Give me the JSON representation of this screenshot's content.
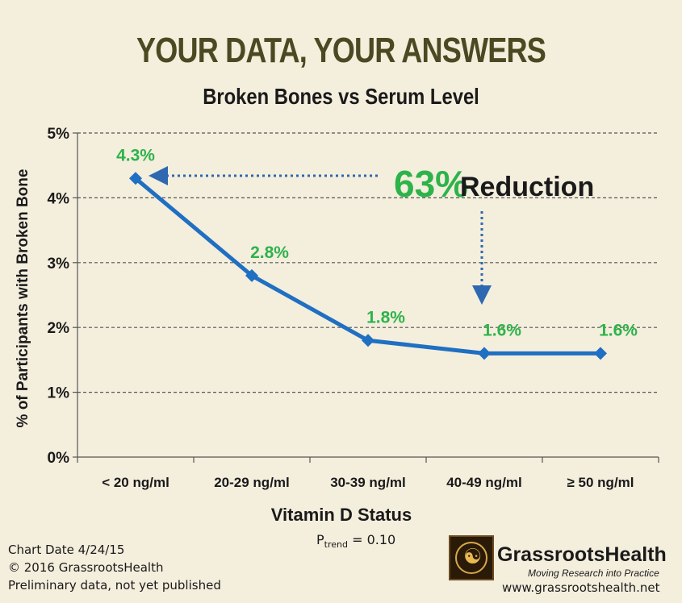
{
  "header": {
    "title": "YOUR DATA, YOUR ANSWERS",
    "subtitle": "Broken Bones vs Serum Level"
  },
  "chart_data": {
    "type": "line",
    "title": "Broken Bones vs Serum Level",
    "xlabel": "Vitamin D Status",
    "ylabel": "% of Participants with Broken Bone",
    "categories": [
      "< 20 ng/ml",
      "20-29 ng/ml",
      "30-39 ng/ml",
      "40-49 ng/ml",
      "≥ 50 ng/ml"
    ],
    "values": [
      4.3,
      2.8,
      1.8,
      1.6,
      1.6
    ],
    "data_labels": [
      "4.3%",
      "2.8%",
      "1.8%",
      "1.6%",
      "1.6%"
    ],
    "y_ticks": [
      "0%",
      "1%",
      "2%",
      "3%",
      "4%",
      "5%"
    ],
    "ylim": [
      0,
      5
    ],
    "grid": true,
    "line_color": "#1f6fc2",
    "label_color": "#2db34a",
    "annotation": {
      "percent": "63%",
      "text": "Reduction"
    },
    "p_trend": {
      "symbol": "P",
      "subscript": "trend",
      "value": "= 0.10"
    }
  },
  "footer": {
    "chart_date": "Chart Date 4/24/15",
    "copyright": "© 2016 GrassrootsHealth",
    "note": "Preliminary data, not yet published",
    "brand": "GrassrootsHealth",
    "tagline": "Moving Research into Practice",
    "website": "www.grassrootshealth.net"
  }
}
